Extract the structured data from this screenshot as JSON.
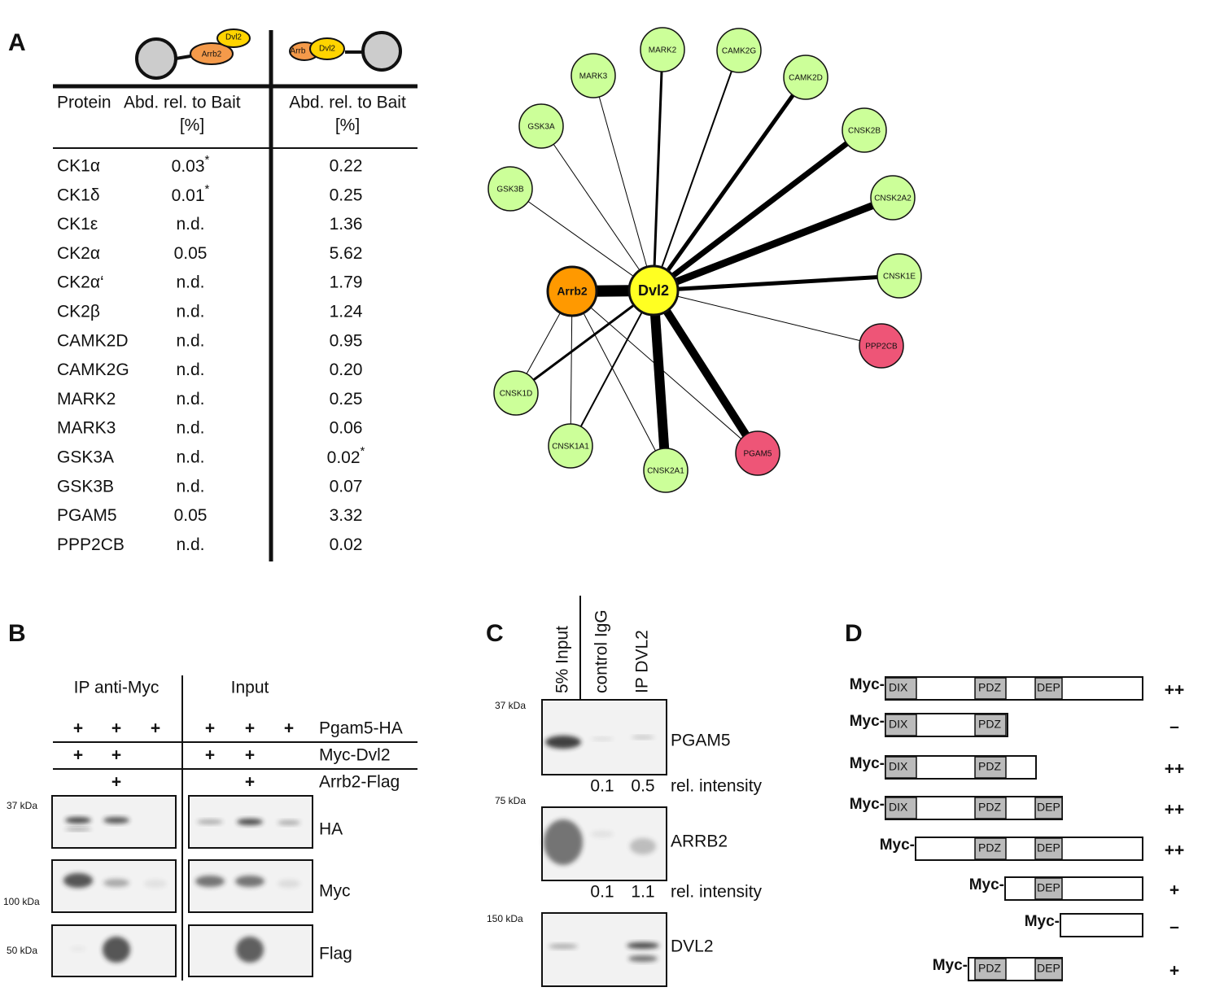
{
  "panel_a": {
    "label": "A",
    "schematic": {
      "left": [
        "Dvl2",
        "Arrb2"
      ],
      "right": [
        "Arrb",
        "Dvl2"
      ]
    },
    "table": {
      "header": [
        [
          "Protein"
        ],
        [
          "Abd. rel. to Bait",
          "[%]"
        ],
        [
          "Abd. rel. to Bait",
          "[%]"
        ]
      ],
      "rows": [
        [
          "CK1α",
          {
            "text": "0.03",
            "sup": "*"
          },
          "0.22"
        ],
        [
          "CK1δ",
          {
            "text": "0.01",
            "sup": "*"
          },
          "0.25"
        ],
        [
          "CK1ε",
          "n.d.",
          "1.36"
        ],
        [
          "CK2α",
          "0.05",
          "5.62"
        ],
        [
          "CK2α‘",
          "n.d.",
          "1.79"
        ],
        [
          "CK2β",
          "n.d.",
          "1.24"
        ],
        [
          "CAMK2D",
          "n.d.",
          "0.95"
        ],
        [
          "CAMK2G",
          "n.d.",
          "0.20"
        ],
        [
          "MARK2",
          "n.d.",
          "0.25"
        ],
        [
          "MARK3",
          "n.d.",
          "0.06"
        ],
        [
          "GSK3A",
          "n.d.",
          {
            "text": "0.02",
            "sup": "*"
          }
        ],
        [
          "GSK3B",
          "n.d.",
          "0.07"
        ],
        [
          "PGAM5",
          "0.05",
          "3.32"
        ],
        [
          "PPP2CB",
          "n.d.",
          "0.02"
        ]
      ]
    },
    "network": {
      "nodes": [
        {
          "label": "Dvl2",
          "color": "#ffff22"
        },
        {
          "label": "Arrb2",
          "color": "#ff9900"
        },
        {
          "label": "MARK2",
          "color": "#ccff99"
        },
        {
          "label": "CAMK2G",
          "color": "#ccff99"
        },
        {
          "label": "MARK3",
          "color": "#ccff99"
        },
        {
          "label": "CAMK2D",
          "color": "#ccff99"
        },
        {
          "label": "GSK3A",
          "color": "#ccff99"
        },
        {
          "label": "CNSK2B",
          "color": "#ccff99"
        },
        {
          "label": "GSK3B",
          "color": "#ccff99"
        },
        {
          "label": "CNSK2A2",
          "color": "#ccff99"
        },
        {
          "label": "CNSK1E",
          "color": "#ccff99"
        },
        {
          "label": "PPP2CB",
          "color": "#ee5577"
        },
        {
          "label": "CNSK1D",
          "color": "#ccff99"
        },
        {
          "label": "CNSK1A1",
          "color": "#ccff99"
        },
        {
          "label": "PGAM5",
          "color": "#ee5577"
        },
        {
          "label": "CNSK2A1",
          "color": "#ccff99"
        }
      ]
    }
  },
  "panel_b": {
    "label": "B",
    "groups": [
      "IP anti-Myc",
      "Input"
    ],
    "rows": [
      {
        "label": "Pgam5-HA",
        "signs": [
          "+",
          "+",
          "+",
          "+",
          "+",
          "+"
        ]
      },
      {
        "label": "Myc-Dvl2",
        "signs": [
          "+",
          "+",
          null,
          "+",
          "+",
          null
        ]
      },
      {
        "label": "Arrb2-Flag",
        "signs": [
          null,
          "+",
          null,
          null,
          "+",
          null
        ]
      }
    ],
    "blots": [
      {
        "label": "HA",
        "marker": "37 kDa"
      },
      {
        "label": "Myc",
        "marker": "100 kDa"
      },
      {
        "label": "Flag",
        "marker": "50 kDa"
      }
    ]
  },
  "panel_c": {
    "label": "C",
    "lanes": [
      "5% Input",
      "control IgG",
      "IP DVL2"
    ],
    "blots": [
      {
        "label": "PGAM5",
        "marker": "37 kDa",
        "intensity": [
          "0.1",
          "0.5"
        ],
        "intensity_label": "rel. intensity"
      },
      {
        "label": "ARRB2",
        "marker": "75 kDa",
        "intensity": [
          "0.1",
          "1.1"
        ],
        "intensity_label": "rel. intensity"
      },
      {
        "label": "DVL2",
        "marker": "150 kDa"
      }
    ]
  },
  "panel_d": {
    "label": "D",
    "constructs": [
      {
        "prefix": "Myc-",
        "domains": [
          "DIX",
          "PDZ",
          "DEP"
        ],
        "result": "++"
      },
      {
        "prefix": "Myc-",
        "domains": [
          "DIX",
          "PDZ"
        ],
        "result": "–"
      },
      {
        "prefix": "Myc-",
        "domains": [
          "DIX",
          "PDZ"
        ],
        "result": "++"
      },
      {
        "prefix": "Myc-",
        "domains": [
          "DIX",
          "PDZ",
          "DEP"
        ],
        "result": "++"
      },
      {
        "prefix": "Myc-",
        "domains": [
          "PDZ",
          "DEP"
        ],
        "result": "++"
      },
      {
        "prefix": "Myc-",
        "domains": [
          "DEP"
        ],
        "result": "+"
      },
      {
        "prefix": "Myc-",
        "domains": [],
        "result": "–"
      },
      {
        "prefix": "Myc-",
        "domains": [
          "PDZ",
          "DEP"
        ],
        "result": "+"
      }
    ]
  }
}
